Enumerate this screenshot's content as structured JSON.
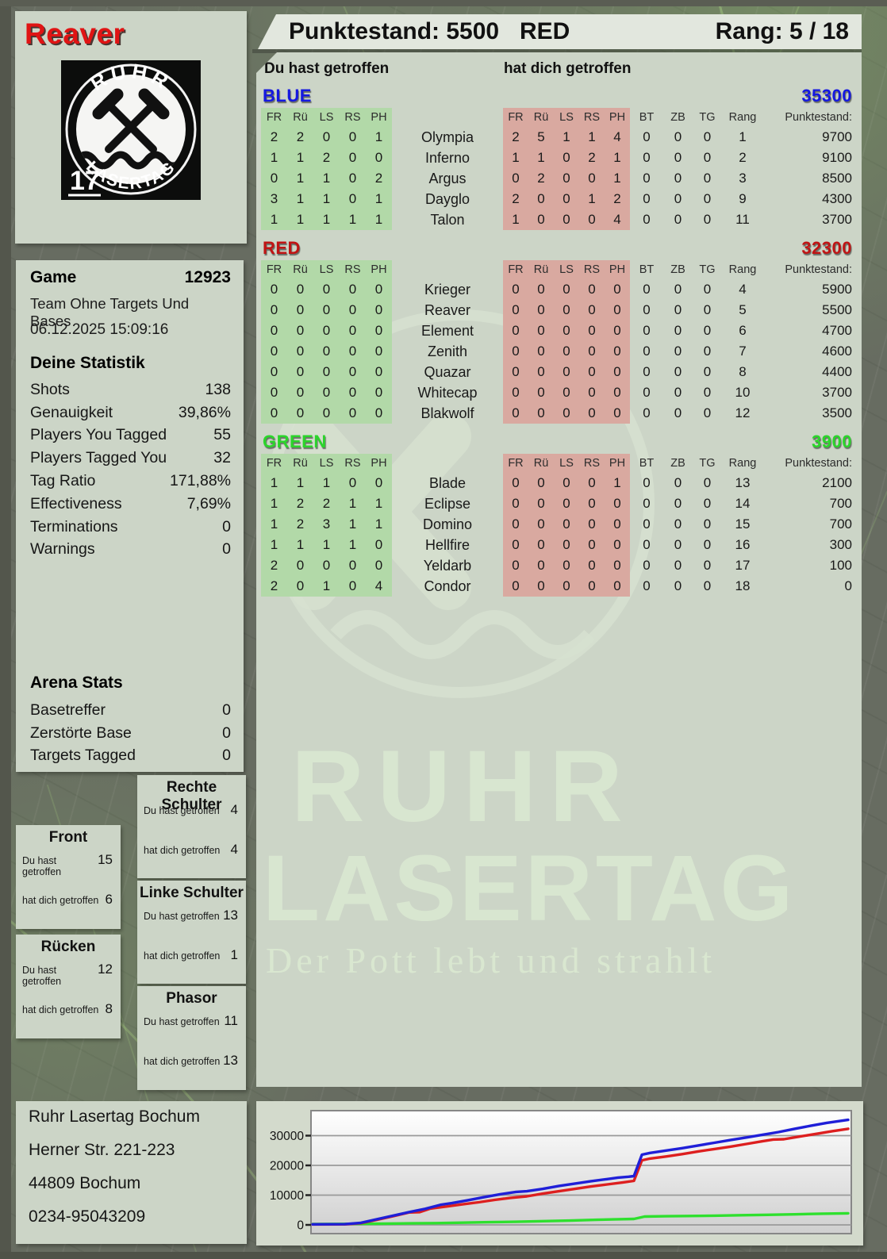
{
  "header": {
    "player_name": "Reaver",
    "punktestand_label": "Punktestand:",
    "punktestand_value": "5500",
    "team": "RED",
    "rang_label": "Rang:",
    "rang_value": "5 / 18"
  },
  "logo": {
    "arc_top": "RUHR",
    "arc_bottom": "LASERTAG",
    "badge": "17"
  },
  "game_info": {
    "game_label": "Game",
    "game_number": "12923",
    "mode": "Team Ohne Targets Und Bases",
    "datetime": "06.12.2025 15:09:16"
  },
  "your_stats": {
    "title": "Deine Statistik",
    "rows": [
      {
        "label": "Shots",
        "value": "138"
      },
      {
        "label": "Genauigkeit",
        "value": "39,86%"
      },
      {
        "label": "Players You Tagged",
        "value": "55"
      },
      {
        "label": "Players Tagged You",
        "value": "32"
      },
      {
        "label": "Tag Ratio",
        "value": "171,88%"
      },
      {
        "label": "Effectiveness",
        "value": "7,69%"
      },
      {
        "label": "Terminations",
        "value": "0"
      },
      {
        "label": "Warnings",
        "value": "0"
      }
    ]
  },
  "arena_stats": {
    "title": "Arena Stats",
    "rows": [
      {
        "label": "Basetreffer",
        "value": "0"
      },
      {
        "label": "Zerstörte Base",
        "value": "0"
      },
      {
        "label": "Targets Tagged",
        "value": "0"
      }
    ]
  },
  "body_parts": {
    "hit_label": "Du hast getroffen",
    "got_label": "hat dich getroffen",
    "boxes": [
      {
        "title": "Rechte Schulter",
        "hit": "4",
        "got": "4"
      },
      {
        "title": "Front",
        "hit": "15",
        "got": "6"
      },
      {
        "title": "Linke Schulter",
        "hit": "13",
        "got": "1"
      },
      {
        "title": "Rücken",
        "hit": "12",
        "got": "8"
      },
      {
        "title": "Phasor",
        "hit": "11",
        "got": "13"
      }
    ]
  },
  "score_table": {
    "left_header": "Du hast getroffen",
    "right_header": "hat dich getroffen",
    "hit_cols": [
      "FR",
      "Rü",
      "LS",
      "RS",
      "PH"
    ],
    "extra_cols": [
      "BT",
      "ZB",
      "TG",
      "Rang",
      "Punktestand:"
    ],
    "teams": [
      {
        "name": "BLUE",
        "color": "#1518e0",
        "total": "35300",
        "players": [
          {
            "name": "Olympia",
            "hit": [
              "2",
              "2",
              "0",
              "0",
              "1"
            ],
            "got": [
              "2",
              "5",
              "1",
              "1",
              "4"
            ],
            "bt": "0",
            "zb": "0",
            "tg": "0",
            "rang": "1",
            "punkte": "9700"
          },
          {
            "name": "Inferno",
            "hit": [
              "1",
              "1",
              "2",
              "0",
              "0"
            ],
            "got": [
              "1",
              "1",
              "0",
              "2",
              "1"
            ],
            "bt": "0",
            "zb": "0",
            "tg": "0",
            "rang": "2",
            "punkte": "9100"
          },
          {
            "name": "Argus",
            "hit": [
              "0",
              "1",
              "1",
              "0",
              "2"
            ],
            "got": [
              "0",
              "2",
              "0",
              "0",
              "1"
            ],
            "bt": "0",
            "zb": "0",
            "tg": "0",
            "rang": "3",
            "punkte": "8500"
          },
          {
            "name": "Dayglo",
            "hit": [
              "3",
              "1",
              "1",
              "0",
              "1"
            ],
            "got": [
              "2",
              "0",
              "0",
              "1",
              "2"
            ],
            "bt": "0",
            "zb": "0",
            "tg": "0",
            "rang": "9",
            "punkte": "4300"
          },
          {
            "name": "Talon",
            "hit": [
              "1",
              "1",
              "1",
              "1",
              "1"
            ],
            "got": [
              "1",
              "0",
              "0",
              "0",
              "4"
            ],
            "bt": "0",
            "zb": "0",
            "tg": "0",
            "rang": "11",
            "punkte": "3700"
          }
        ]
      },
      {
        "name": "RED",
        "color": "#c01414",
        "total": "32300",
        "players": [
          {
            "name": "Krieger",
            "hit": [
              "0",
              "0",
              "0",
              "0",
              "0"
            ],
            "got": [
              "0",
              "0",
              "0",
              "0",
              "0"
            ],
            "bt": "0",
            "zb": "0",
            "tg": "0",
            "rang": "4",
            "punkte": "5900"
          },
          {
            "name": "Reaver",
            "hit": [
              "0",
              "0",
              "0",
              "0",
              "0"
            ],
            "got": [
              "0",
              "0",
              "0",
              "0",
              "0"
            ],
            "bt": "0",
            "zb": "0",
            "tg": "0",
            "rang": "5",
            "punkte": "5500"
          },
          {
            "name": "Element",
            "hit": [
              "0",
              "0",
              "0",
              "0",
              "0"
            ],
            "got": [
              "0",
              "0",
              "0",
              "0",
              "0"
            ],
            "bt": "0",
            "zb": "0",
            "tg": "0",
            "rang": "6",
            "punkte": "4700"
          },
          {
            "name": "Zenith",
            "hit": [
              "0",
              "0",
              "0",
              "0",
              "0"
            ],
            "got": [
              "0",
              "0",
              "0",
              "0",
              "0"
            ],
            "bt": "0",
            "zb": "0",
            "tg": "0",
            "rang": "7",
            "punkte": "4600"
          },
          {
            "name": "Quazar",
            "hit": [
              "0",
              "0",
              "0",
              "0",
              "0"
            ],
            "got": [
              "0",
              "0",
              "0",
              "0",
              "0"
            ],
            "bt": "0",
            "zb": "0",
            "tg": "0",
            "rang": "8",
            "punkte": "4400"
          },
          {
            "name": "Whitecap",
            "hit": [
              "0",
              "0",
              "0",
              "0",
              "0"
            ],
            "got": [
              "0",
              "0",
              "0",
              "0",
              "0"
            ],
            "bt": "0",
            "zb": "0",
            "tg": "0",
            "rang": "10",
            "punkte": "3700"
          },
          {
            "name": "Blakwolf",
            "hit": [
              "0",
              "0",
              "0",
              "0",
              "0"
            ],
            "got": [
              "0",
              "0",
              "0",
              "0",
              "0"
            ],
            "bt": "0",
            "zb": "0",
            "tg": "0",
            "rang": "12",
            "punkte": "3500"
          }
        ]
      },
      {
        "name": "GREEN",
        "color": "#2bd52b",
        "total": "3900",
        "players": [
          {
            "name": "Blade",
            "hit": [
              "1",
              "1",
              "1",
              "0",
              "0"
            ],
            "got": [
              "0",
              "0",
              "0",
              "0",
              "1"
            ],
            "bt": "0",
            "zb": "0",
            "tg": "0",
            "rang": "13",
            "punkte": "2100"
          },
          {
            "name": "Eclipse",
            "hit": [
              "1",
              "2",
              "2",
              "1",
              "1"
            ],
            "got": [
              "0",
              "0",
              "0",
              "0",
              "0"
            ],
            "bt": "0",
            "zb": "0",
            "tg": "0",
            "rang": "14",
            "punkte": "700"
          },
          {
            "name": "Domino",
            "hit": [
              "1",
              "2",
              "3",
              "1",
              "1"
            ],
            "got": [
              "0",
              "0",
              "0",
              "0",
              "0"
            ],
            "bt": "0",
            "zb": "0",
            "tg": "0",
            "rang": "15",
            "punkte": "700"
          },
          {
            "name": "Hellfire",
            "hit": [
              "1",
              "1",
              "1",
              "1",
              "0"
            ],
            "got": [
              "0",
              "0",
              "0",
              "0",
              "0"
            ],
            "bt": "0",
            "zb": "0",
            "tg": "0",
            "rang": "16",
            "punkte": "300"
          },
          {
            "name": "Yeldarb",
            "hit": [
              "2",
              "0",
              "0",
              "0",
              "0"
            ],
            "got": [
              "0",
              "0",
              "0",
              "0",
              "0"
            ],
            "bt": "0",
            "zb": "0",
            "tg": "0",
            "rang": "17",
            "punkte": "100"
          },
          {
            "name": "Condor",
            "hit": [
              "2",
              "0",
              "1",
              "0",
              "4"
            ],
            "got": [
              "0",
              "0",
              "0",
              "0",
              "0"
            ],
            "bt": "0",
            "zb": "0",
            "tg": "0",
            "rang": "18",
            "punkte": "0"
          }
        ]
      }
    ]
  },
  "watermark": {
    "line1": "RUHR",
    "line2": "LASERTAG",
    "tagline": "Der Pott lebt und strahlt"
  },
  "footer": {
    "lines": [
      "Ruhr Lasertag Bochum",
      "Herner Str. 221-223",
      "44809 Bochum",
      "0234-95043209"
    ]
  },
  "chart_data": {
    "type": "line",
    "title": "",
    "xlabel": "",
    "ylabel": "",
    "ylim": [
      0,
      36000
    ],
    "yticks": [
      0,
      10000,
      20000,
      30000
    ],
    "grid": true,
    "legend_position": "none",
    "series": [
      {
        "name": "GREEN",
        "color": "#2ee02e",
        "points": [
          [
            0,
            300
          ],
          [
            8,
            350
          ],
          [
            13,
            400
          ],
          [
            18,
            500
          ],
          [
            23,
            600
          ],
          [
            28,
            750
          ],
          [
            33,
            900
          ],
          [
            38,
            1050
          ],
          [
            43,
            1250
          ],
          [
            48,
            1450
          ],
          [
            53,
            1700
          ],
          [
            57,
            1900
          ],
          [
            60,
            2000
          ],
          [
            62,
            2800
          ],
          [
            66,
            2900
          ],
          [
            70,
            3000
          ],
          [
            75,
            3100
          ],
          [
            80,
            3250
          ],
          [
            85,
            3400
          ],
          [
            90,
            3550
          ],
          [
            95,
            3750
          ],
          [
            100,
            3900
          ]
        ]
      },
      {
        "name": "RED",
        "color": "#dd1f1f",
        "points": [
          [
            0,
            150
          ],
          [
            6,
            200
          ],
          [
            9,
            600
          ],
          [
            12,
            1700
          ],
          [
            15,
            2900
          ],
          [
            18,
            4200
          ],
          [
            20,
            4300
          ],
          [
            22,
            5500
          ],
          [
            25,
            6200
          ],
          [
            28,
            6900
          ],
          [
            31,
            7600
          ],
          [
            34,
            8400
          ],
          [
            37,
            9100
          ],
          [
            40,
            9600
          ],
          [
            43,
            10500
          ],
          [
            46,
            11300
          ],
          [
            49,
            12100
          ],
          [
            52,
            12900
          ],
          [
            55,
            13600
          ],
          [
            58,
            14300
          ],
          [
            60,
            14800
          ],
          [
            61.5,
            21700
          ],
          [
            63,
            22300
          ],
          [
            66,
            23000
          ],
          [
            69,
            23800
          ],
          [
            72,
            24700
          ],
          [
            75,
            25500
          ],
          [
            78,
            26300
          ],
          [
            81,
            27200
          ],
          [
            84,
            28100
          ],
          [
            86,
            28700
          ],
          [
            88,
            28800
          ],
          [
            91,
            29700
          ],
          [
            94,
            30600
          ],
          [
            97,
            31500
          ],
          [
            100,
            32300
          ]
        ]
      },
      {
        "name": "BLUE",
        "color": "#1f1fd8",
        "points": [
          [
            0,
            200
          ],
          [
            6,
            250
          ],
          [
            9,
            700
          ],
          [
            12,
            1900
          ],
          [
            15,
            3100
          ],
          [
            18,
            4300
          ],
          [
            21,
            5400
          ],
          [
            24,
            6800
          ],
          [
            26,
            7300
          ],
          [
            29,
            8300
          ],
          [
            32,
            9300
          ],
          [
            35,
            10300
          ],
          [
            38,
            11100
          ],
          [
            40,
            11300
          ],
          [
            43,
            12100
          ],
          [
            46,
            13100
          ],
          [
            49,
            13900
          ],
          [
            52,
            14700
          ],
          [
            55,
            15400
          ],
          [
            57,
            15900
          ],
          [
            59,
            16200
          ],
          [
            60,
            16400
          ],
          [
            61.5,
            23600
          ],
          [
            63,
            24200
          ],
          [
            66,
            25000
          ],
          [
            69,
            25800
          ],
          [
            72,
            26700
          ],
          [
            75,
            27600
          ],
          [
            78,
            28500
          ],
          [
            81,
            29400
          ],
          [
            84,
            30300
          ],
          [
            87,
            31200
          ],
          [
            90,
            32300
          ],
          [
            93,
            33300
          ],
          [
            96,
            34300
          ],
          [
            100,
            35300
          ]
        ]
      }
    ]
  }
}
